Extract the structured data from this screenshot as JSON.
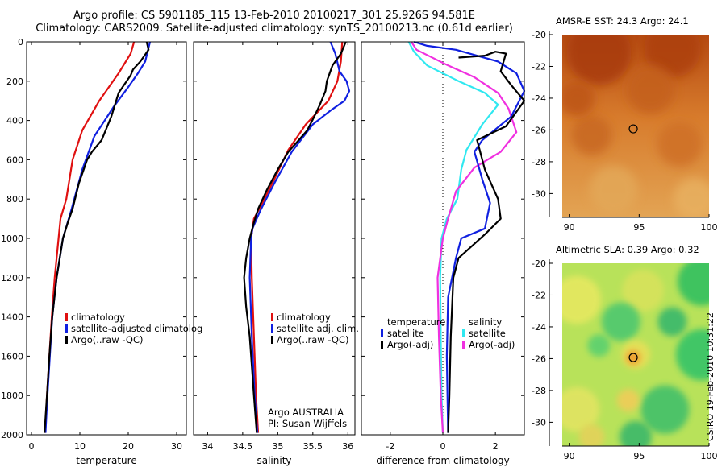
{
  "header": {
    "title_line1": "Argo profile: CS 5901185_115 13-Feb-2010 20100217_301 25.926S 94.581E",
    "title_line2": "Climatology: CARS2009. Satellite-adjusted climatology: synTS_20100213.nc (0.61d earlier)"
  },
  "stamp": "CSIRO 19-Feb-2010 10:31:22",
  "colors": {
    "climatology": "#e01010",
    "satellite": "#1020e0",
    "argo": "#000000",
    "sat_salinity": "#30e8f0",
    "argo_adj_salinity": "#f030e0"
  },
  "chart_data": [
    {
      "type": "line",
      "xlabel": "temperature",
      "ylabel": "",
      "xlim": [
        -1,
        32
      ],
      "ylim": [
        2000,
        0
      ],
      "xticks": [
        0,
        10,
        20,
        30
      ],
      "yticks": [
        0,
        200,
        400,
        600,
        800,
        1000,
        1200,
        1400,
        1600,
        1800,
        2000
      ],
      "legend": {
        "placement": "bottom-right",
        "entries": [
          {
            "label": "climatology",
            "color": "#e01010"
          },
          {
            "label": "satellite-adjusted climatolog",
            "color": "#1020e0"
          },
          {
            "label": "Argo(..raw -QC)",
            "color": "#000000"
          }
        ]
      },
      "series": [
        {
          "color": "#e01010",
          "points": [
            [
              21.2,
              0
            ],
            [
              20.5,
              60
            ],
            [
              18,
              160
            ],
            [
              14,
              300
            ],
            [
              10.5,
              450
            ],
            [
              8.5,
              600
            ],
            [
              7.2,
              800
            ],
            [
              6,
              900
            ],
            [
              5.6,
              1000
            ],
            [
              4.8,
              1200
            ],
            [
              4.2,
              1400
            ],
            [
              3.7,
              1600
            ],
            [
              3.2,
              1800
            ],
            [
              2.8,
              1990
            ]
          ]
        },
        {
          "color": "#1020e0",
          "points": [
            [
              24.5,
              0
            ],
            [
              23.5,
              100
            ],
            [
              22,
              160
            ],
            [
              20,
              230
            ],
            [
              17,
              330
            ],
            [
              13,
              480
            ],
            [
              10.5,
              650
            ],
            [
              8.3,
              850
            ],
            [
              6.5,
              1000
            ],
            [
              5.2,
              1200
            ],
            [
              4.3,
              1400
            ],
            [
              3.8,
              1600
            ],
            [
              3.3,
              1800
            ],
            [
              2.9,
              1990
            ]
          ]
        },
        {
          "color": "#000000",
          "points": [
            [
              23.8,
              0
            ],
            [
              24.2,
              40
            ],
            [
              22.5,
              100
            ],
            [
              21,
              140
            ],
            [
              20.5,
              170
            ],
            [
              18,
              260
            ],
            [
              17.5,
              300
            ],
            [
              16.5,
              380
            ],
            [
              14.5,
              500
            ],
            [
              12.5,
              560
            ],
            [
              11.5,
              600
            ],
            [
              9.8,
              720
            ],
            [
              8.5,
              850
            ],
            [
              7.5,
              920
            ],
            [
              6.5,
              1000
            ],
            [
              5.2,
              1200
            ],
            [
              4.3,
              1400
            ],
            [
              3.7,
              1600
            ],
            [
              3.2,
              1800
            ],
            [
              2.7,
              1990
            ]
          ]
        }
      ],
      "annotations": []
    },
    {
      "type": "line",
      "xlabel": "salinity",
      "ylabel": "",
      "xlim": [
        33.8,
        36.1
      ],
      "ylim": [
        2000,
        0
      ],
      "xticks": [
        34,
        34.5,
        35,
        35.5,
        36
      ],
      "yticks": [],
      "legend": {
        "placement": "bottom-right",
        "entries": [
          {
            "label": "climatology",
            "color": "#e01010"
          },
          {
            "label": "satellite adj. clim.",
            "color": "#1020e0"
          },
          {
            "label": "Argo(..raw -QC)",
            "color": "#000000"
          }
        ]
      },
      "series": [
        {
          "color": "#e01010",
          "points": [
            [
              35.92,
              0
            ],
            [
              35.9,
              100
            ],
            [
              35.85,
              200
            ],
            [
              35.72,
              300
            ],
            [
              35.4,
              420
            ],
            [
              35.15,
              550
            ],
            [
              34.95,
              700
            ],
            [
              34.78,
              820
            ],
            [
              34.66,
              900
            ],
            [
              34.62,
              1000
            ],
            [
              34.63,
              1200
            ],
            [
              34.66,
              1500
            ],
            [
              34.69,
              1800
            ],
            [
              34.72,
              1990
            ]
          ]
        },
        {
          "color": "#1020e0",
          "points": [
            [
              35.75,
              0
            ],
            [
              35.82,
              60
            ],
            [
              35.88,
              150
            ],
            [
              35.98,
              200
            ],
            [
              36.02,
              250
            ],
            [
              35.95,
              300
            ],
            [
              35.75,
              350
            ],
            [
              35.5,
              420
            ],
            [
              35.2,
              560
            ],
            [
              34.95,
              720
            ],
            [
              34.75,
              860
            ],
            [
              34.64,
              950
            ],
            [
              34.62,
              1000
            ],
            [
              34.6,
              1200
            ],
            [
              34.63,
              1500
            ],
            [
              34.67,
              1800
            ],
            [
              34.71,
              1990
            ]
          ]
        },
        {
          "color": "#000000",
          "points": [
            [
              35.97,
              0
            ],
            [
              35.9,
              60
            ],
            [
              35.78,
              120
            ],
            [
              35.7,
              200
            ],
            [
              35.68,
              250
            ],
            [
              35.6,
              320
            ],
            [
              35.52,
              380
            ],
            [
              35.42,
              450
            ],
            [
              35.3,
              500
            ],
            [
              35.15,
              560
            ],
            [
              35.0,
              650
            ],
            [
              34.85,
              750
            ],
            [
              34.72,
              850
            ],
            [
              34.66,
              920
            ],
            [
              34.6,
              1000
            ],
            [
              34.55,
              1100
            ],
            [
              34.52,
              1200
            ],
            [
              34.55,
              1350
            ],
            [
              34.6,
              1500
            ],
            [
              34.66,
              1800
            ],
            [
              34.7,
              1990
            ]
          ]
        }
      ],
      "annotations": [
        "Argo AUSTRALIA",
        "PI: Susan Wijffels"
      ]
    },
    {
      "type": "line",
      "xlabel": "difference from climatology",
      "ylabel": "",
      "xlim": [
        -3.1,
        3.1
      ],
      "ylim": [
        2000,
        0
      ],
      "xticks": [
        -2,
        0,
        2
      ],
      "yticks": [],
      "legend": {
        "placement": "bottom",
        "entries": [
          {
            "label": "temperature",
            "color": null
          },
          {
            "label": "satellite",
            "color": "#1020e0"
          },
          {
            "label": "Argo(-adj)",
            "color": "#000000"
          },
          {
            "label": "salinity",
            "color": null
          },
          {
            "label": "satellite",
            "color": "#30e8f0"
          },
          {
            "label": "Argo(-adj)",
            "color": "#f030e0"
          }
        ]
      },
      "series": [
        {
          "color": "#30e8f0",
          "points": [
            [
              -1.3,
              0
            ],
            [
              -1.1,
              50
            ],
            [
              -0.6,
              120
            ],
            [
              0.6,
              200
            ],
            [
              1.6,
              260
            ],
            [
              2.1,
              320
            ],
            [
              1.5,
              420
            ],
            [
              0.9,
              550
            ],
            [
              0.7,
              650
            ],
            [
              0.55,
              800
            ],
            [
              0.15,
              900
            ],
            [
              -0.05,
              1000
            ],
            [
              -0.1,
              1200
            ],
            [
              -0.08,
              1500
            ],
            [
              -0.05,
              1800
            ],
            [
              0.0,
              1990
            ]
          ]
        },
        {
          "color": "#f030e0",
          "points": [
            [
              -1.2,
              0
            ],
            [
              -1.0,
              40
            ],
            [
              0.2,
              120
            ],
            [
              1.2,
              180
            ],
            [
              2.1,
              260
            ],
            [
              2.5,
              340
            ],
            [
              2.8,
              460
            ],
            [
              2.2,
              560
            ],
            [
              1.2,
              640
            ],
            [
              0.5,
              760
            ],
            [
              0.2,
              900
            ],
            [
              0.0,
              1000
            ],
            [
              -0.2,
              1200
            ],
            [
              -0.15,
              1500
            ],
            [
              -0.08,
              1800
            ],
            [
              0.0,
              1990
            ]
          ]
        },
        {
          "color": "#1020e0",
          "points": [
            [
              -1.1,
              0
            ],
            [
              -0.6,
              20
            ],
            [
              0.5,
              40
            ],
            [
              2.1,
              100
            ],
            [
              2.8,
              160
            ],
            [
              3.1,
              250
            ],
            [
              2.6,
              380
            ],
            [
              1.5,
              500
            ],
            [
              1.2,
              560
            ],
            [
              1.5,
              700
            ],
            [
              1.8,
              820
            ],
            [
              1.6,
              950
            ],
            [
              0.7,
              1000
            ],
            [
              0.5,
              1100
            ],
            [
              0.2,
              1300
            ],
            [
              0.15,
              1600
            ],
            [
              0.2,
              1990
            ]
          ]
        },
        {
          "color": "#000000",
          "points": [
            [
              0.6,
              80
            ],
            [
              1.6,
              70
            ],
            [
              2.0,
              50
            ],
            [
              2.4,
              60
            ],
            [
              2.2,
              150
            ],
            [
              2.6,
              220
            ],
            [
              3.1,
              300
            ],
            [
              2.4,
              430
            ],
            [
              1.3,
              500
            ],
            [
              1.6,
              650
            ],
            [
              2.1,
              800
            ],
            [
              2.2,
              900
            ],
            [
              1.6,
              980
            ],
            [
              0.6,
              1100
            ],
            [
              0.4,
              1200
            ],
            [
              0.3,
              1500
            ],
            [
              0.25,
              1800
            ],
            [
              0.2,
              1990
            ]
          ]
        }
      ],
      "annotations": []
    },
    {
      "type": "heatmap",
      "title": "AMSR-E SST: 24.3 Argo: 24.1",
      "xlim": [
        89.5,
        100
      ],
      "ylim": [
        -31.5,
        -20
      ],
      "xticks": [
        90,
        95,
        100
      ],
      "yticks": [
        -20,
        -22,
        -24,
        -26,
        -28,
        -30
      ],
      "marker": {
        "lon": 94.58,
        "lat": -25.93
      }
    },
    {
      "type": "heatmap",
      "title": "Altimetric SLA: 0.39 Argo: 0.32",
      "xlim": [
        89.5,
        100
      ],
      "ylim": [
        -31.5,
        -20
      ],
      "xticks": [
        90,
        95,
        100
      ],
      "yticks": [
        -20,
        -22,
        -24,
        -26,
        -28,
        -30
      ],
      "marker": {
        "lon": 94.58,
        "lat": -25.93
      }
    }
  ]
}
